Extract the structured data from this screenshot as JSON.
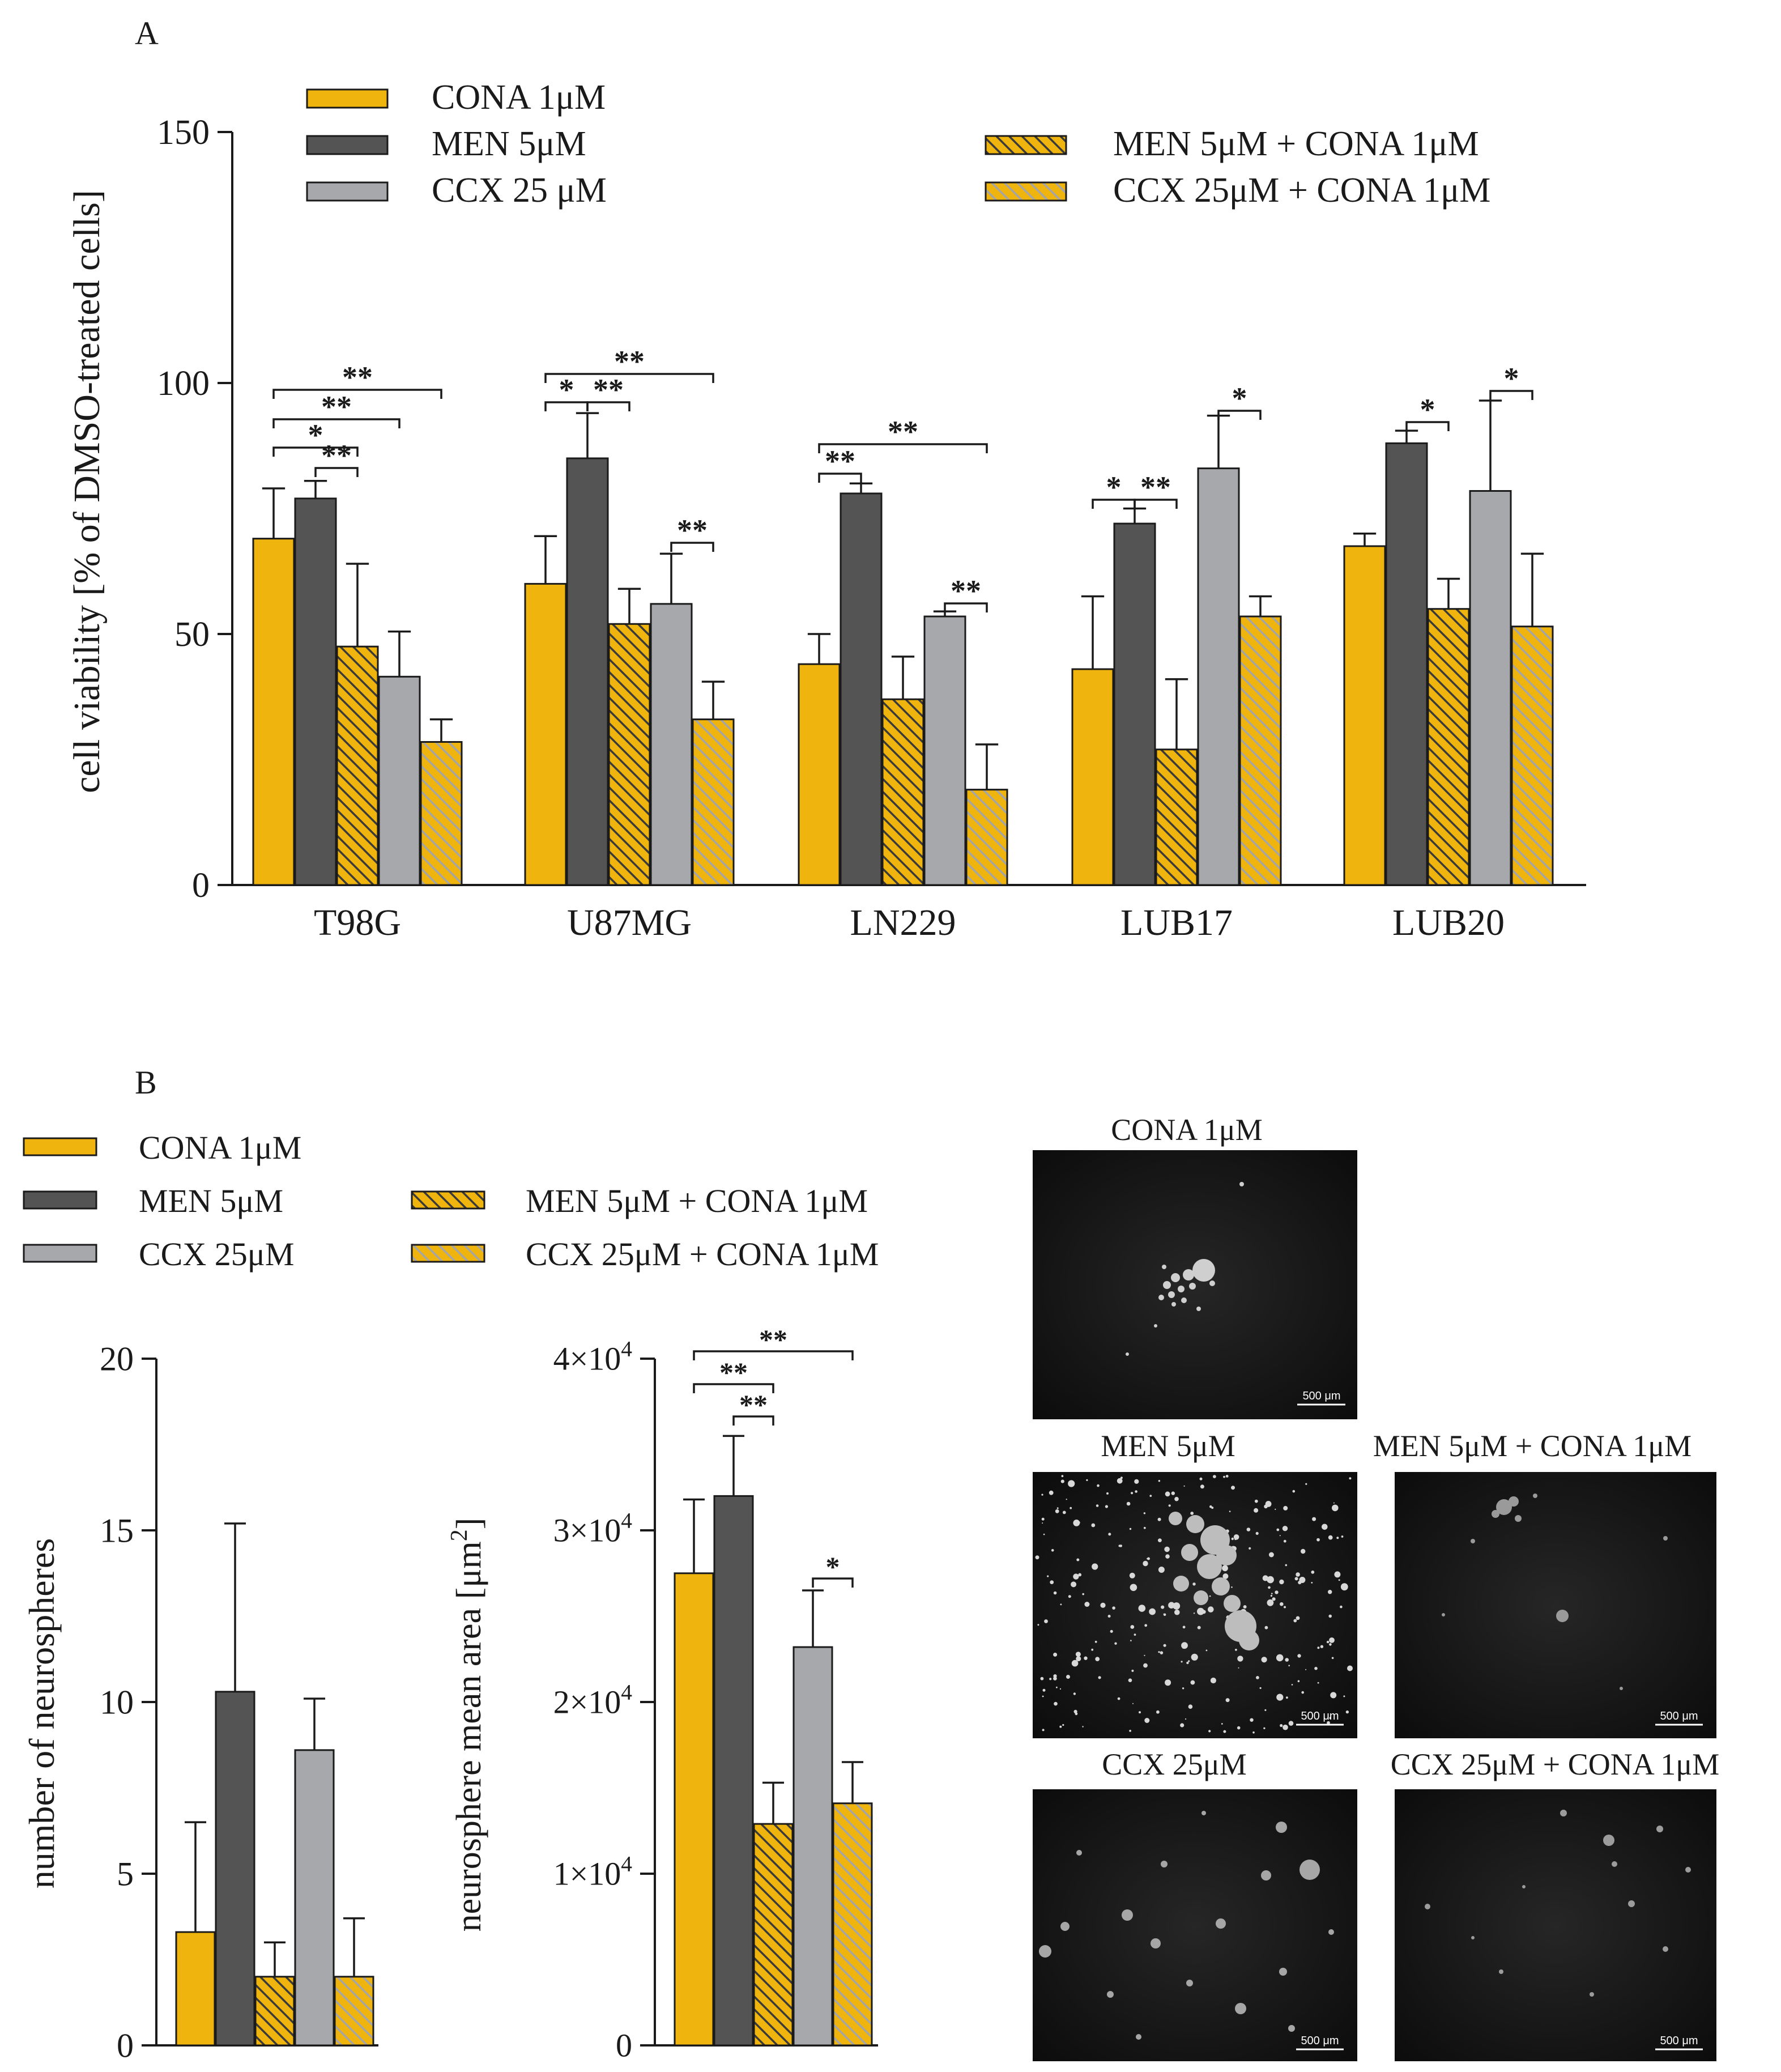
{
  "colors": {
    "cona": "#f0b40f",
    "men": "#545454",
    "ccx": "#a7a8ab",
    "hatch_men_cona": "#f0b40f",
    "hatch_ccx_cona": "#f0b40f",
    "hatch_line_men": "#3a3a3a",
    "hatch_line_ccx": "#9a9a9a"
  },
  "panel_a": {
    "letter": "A",
    "legend": [
      "CONA 1μM",
      "MEN 5μM",
      "CCX 25 μM",
      "MEN 5μM + CONA 1μM",
      "CCX 25μM + CONA 1μM"
    ]
  },
  "panel_b": {
    "letter": "B",
    "legend": [
      "CONA 1μM",
      "MEN 5μM",
      "CCX 25μM",
      "MEN 5μM + CONA 1μM",
      "CCX 25μM + CONA 1μM"
    ],
    "images": {
      "title_cona": "CONA 1μM",
      "title_men": "MEN 5μM",
      "title_men_cona": "MEN 5μM + CONA 1μM",
      "title_ccx": "CCX 25μM",
      "title_ccx_cona": "CCX 25μM + CONA 1μM",
      "scale_bar": "500 μm"
    }
  },
  "chart_data": [
    {
      "id": "viability",
      "type": "bar",
      "ylabel": "cell viability [% of DMSO-treated cells]",
      "ylim": [
        0,
        150
      ],
      "yticks": [
        "0",
        "50",
        "100",
        "150"
      ],
      "categories": [
        "T98G",
        "U87MG",
        "LN229",
        "LUB17",
        "LUB20"
      ],
      "series": [
        {
          "name": "CONA 1μM",
          "values": [
            69,
            60,
            44,
            43,
            67.5
          ],
          "errors": [
            10,
            9.5,
            6,
            14.5,
            2.5
          ]
        },
        {
          "name": "MEN 5μM",
          "values": [
            77,
            85,
            78,
            72,
            88
          ],
          "errors": [
            3.5,
            9,
            2,
            3,
            2.5
          ]
        },
        {
          "name": "MEN 5μM + CONA 1μM",
          "values": [
            47.5,
            52,
            37,
            27,
            55
          ],
          "errors": [
            16.5,
            7,
            8.5,
            14,
            6
          ]
        },
        {
          "name": "CCX 25 μM",
          "values": [
            41.5,
            56,
            53.5,
            83,
            78.5
          ],
          "errors": [
            9,
            10,
            1,
            10.5,
            18
          ]
        },
        {
          "name": "CCX 25μM + CONA 1μM",
          "values": [
            28.5,
            33,
            19,
            53.5,
            51.5
          ],
          "errors": [
            4.5,
            7.5,
            9,
            4,
            14.5
          ]
        }
      ],
      "significance": [
        {
          "group": "T98G",
          "from": 0,
          "to": 4,
          "label": "**"
        },
        {
          "group": "T98G",
          "from": 0,
          "to": 3,
          "label": "**"
        },
        {
          "group": "T98G",
          "from": 0,
          "to": 2,
          "label": "*"
        },
        {
          "group": "T98G",
          "from": 1,
          "to": 2,
          "label": "**"
        },
        {
          "group": "U87MG",
          "from": 0,
          "to": 4,
          "label": "**"
        },
        {
          "group": "U87MG",
          "from": 0,
          "to": 1,
          "label": "*"
        },
        {
          "group": "U87MG",
          "from": 1,
          "to": 2,
          "label": "**"
        },
        {
          "group": "U87MG",
          "from": 3,
          "to": 4,
          "label": "**"
        },
        {
          "group": "LN229",
          "from": 0,
          "to": 4,
          "label": "**"
        },
        {
          "group": "LN229",
          "from": 0,
          "to": 1,
          "label": "**"
        },
        {
          "group": "LN229",
          "from": 3,
          "to": 4,
          "label": "**"
        },
        {
          "group": "LUB17",
          "from": 0,
          "to": 1,
          "label": "*"
        },
        {
          "group": "LUB17",
          "from": 1,
          "to": 2,
          "label": "**"
        },
        {
          "group": "LUB17",
          "from": 3,
          "to": 4,
          "label": "*"
        },
        {
          "group": "LUB20",
          "from": 1,
          "to": 2,
          "label": "*"
        },
        {
          "group": "LUB20",
          "from": 3,
          "to": 4,
          "label": "*"
        }
      ]
    },
    {
      "id": "neurosphere_count",
      "type": "bar",
      "ylabel": "number of neurospheres",
      "ylim": [
        0,
        20
      ],
      "yticks": [
        "0",
        "5",
        "10",
        "15",
        "20"
      ],
      "categories": [
        "CONA 1μM",
        "MEN 5μM",
        "MEN 5μM + CONA 1μM",
        "CCX 25μM",
        "CCX 25μM + CONA 1μM"
      ],
      "values": [
        3.3,
        10.3,
        2.0,
        8.6,
        2.0
      ],
      "errors": [
        3.2,
        4.9,
        1.0,
        1.5,
        1.7
      ]
    },
    {
      "id": "neurosphere_area",
      "type": "bar",
      "ylabel": "neurosphere mean area [μm",
      "ylabel_sup": "2",
      "ylabel_close": "]",
      "ylim": [
        0,
        40000
      ],
      "yticks": [
        "0",
        "1×10",
        "2×10",
        "3×10",
        "4×10"
      ],
      "ytick_exp": "4",
      "categories": [
        "CONA 1μM",
        "MEN 5μM",
        "MEN 5μM + CONA 1μM",
        "CCX 25μM",
        "CCX 25μM + CONA 1μM"
      ],
      "values": [
        27500,
        32000,
        12900,
        23200,
        14100
      ],
      "errors": [
        4300,
        3500,
        2400,
        3300,
        2400
      ],
      "significance": [
        {
          "from": 0,
          "to": 4,
          "label": "**"
        },
        {
          "from": 0,
          "to": 2,
          "label": "**"
        },
        {
          "from": 1,
          "to": 2,
          "label": "**"
        },
        {
          "from": 3,
          "to": 4,
          "label": "*"
        }
      ]
    }
  ]
}
